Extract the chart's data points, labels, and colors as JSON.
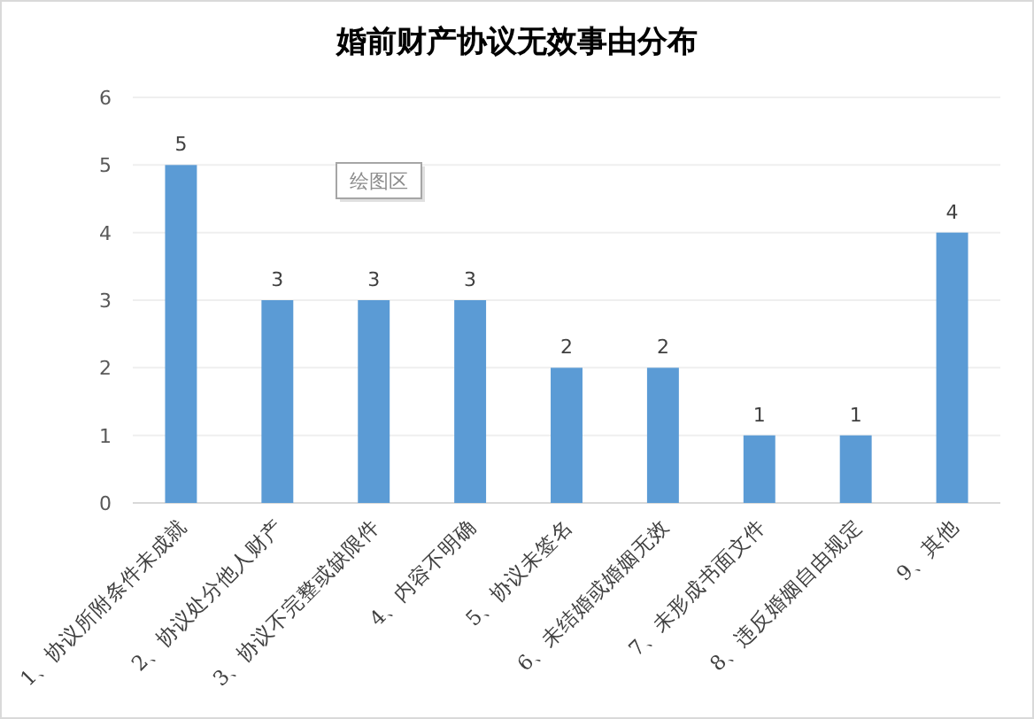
{
  "chart_data": {
    "type": "bar",
    "title": "婚前财产协议无效事由分布",
    "categories": [
      "1、协议所附条件未成就",
      "2、协议处分他人财产",
      "3、协议不完整或缺限件",
      "4、内容不明确",
      "5、协议未签名",
      "6、未结婚或婚姻无效",
      "7、未形成书面文件",
      "8、违反婚姻自由规定",
      "9、其他"
    ],
    "values": [
      5,
      3,
      3,
      3,
      2,
      2,
      1,
      1,
      4
    ],
    "color": "#5b9bd5",
    "ylim": [
      0,
      6
    ],
    "yticks": [
      0,
      1,
      2,
      3,
      4,
      5,
      6
    ],
    "grid": "y",
    "data_labels": true,
    "annotations": [
      "绘图区"
    ]
  }
}
